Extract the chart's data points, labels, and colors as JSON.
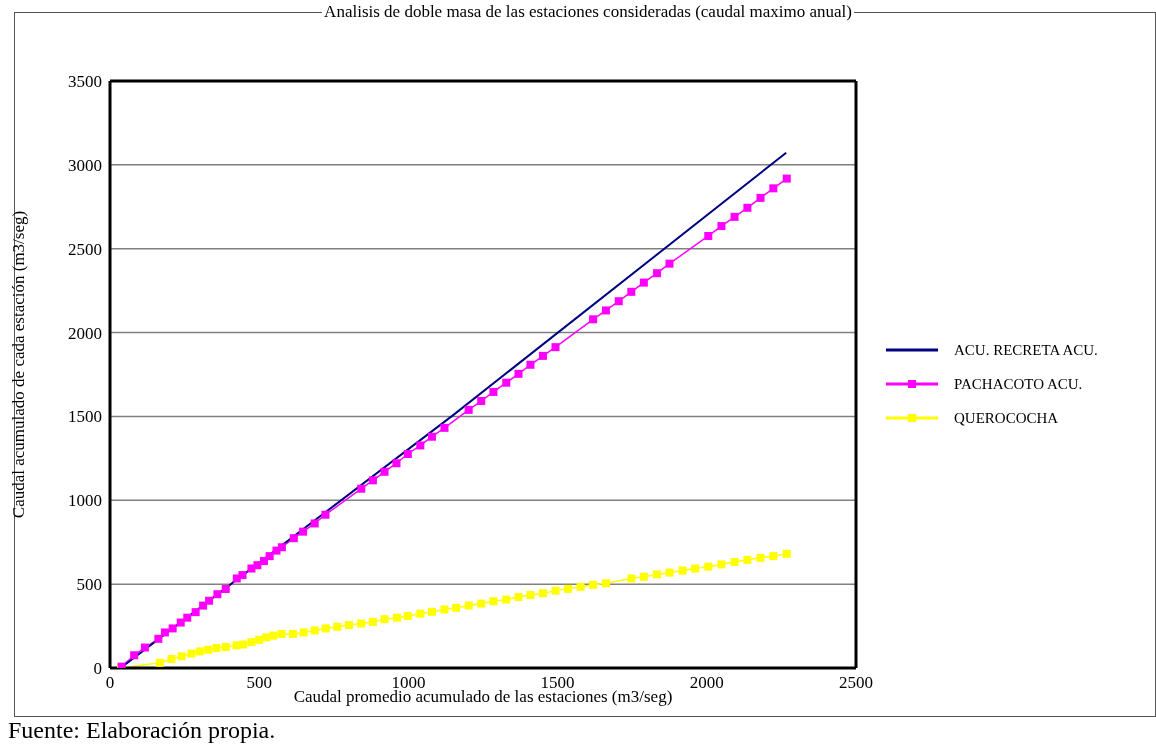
{
  "chart_data": {
    "type": "line",
    "title": "Analisis de doble masa de las estaciones consideradas (caudal maximo anual)",
    "xlabel": "Caudal promedio acumulado de las estaciones (m3/seg)",
    "ylabel": "Caudal acumulado de cada estación (m3/seg)",
    "annotations": [
      "Fuente: Elaboración propia."
    ],
    "xlim": [
      0,
      2500
    ],
    "xticks": [
      0,
      500,
      1000,
      1500,
      2000,
      2500
    ],
    "ylim": [
      0,
      3500
    ],
    "yticks": [
      0,
      500,
      1000,
      1500,
      2000,
      2500,
      3000,
      3500
    ],
    "grid": "y",
    "legend": "right",
    "series": [
      {
        "name": "ACU. RECRETA ACU.",
        "color": "#000080",
        "marker": "none",
        "x": [
          40,
          1150,
          2266
        ],
        "values": [
          6,
          1508,
          3072
        ]
      },
      {
        "name": "PACHACOTO ACU.",
        "color": "#ff00ff",
        "marker": "square",
        "x": [
          39,
          81,
          117,
          162,
          184,
          210,
          237,
          259,
          287,
          312,
          332,
          360,
          388,
          425,
          444,
          474,
          494,
          516,
          535,
          558,
          576,
          616,
          647,
          686,
          722,
          842,
          881,
          920,
          960,
          998,
          1040,
          1079,
          1121,
          1202,
          1244,
          1285,
          1328,
          1369,
          1409,
          1451,
          1493,
          1619,
          1662,
          1705,
          1747,
          1789,
          1833,
          1875,
          2005,
          2049,
          2093,
          2136,
          2180,
          2223,
          2268
        ],
        "values": [
          8,
          76,
          122,
          174,
          212,
          236,
          271,
          300,
          333,
          372,
          401,
          440,
          471,
          534,
          554,
          593,
          613,
          638,
          667,
          700,
          720,
          774,
          813,
          862,
          914,
          1069,
          1119,
          1170,
          1221,
          1276,
          1327,
          1379,
          1432,
          1539,
          1592,
          1646,
          1701,
          1754,
          1808,
          1861,
          1913,
          2079,
          2132,
          2187,
          2243,
          2298,
          2354,
          2411,
          2576,
          2635,
          2690,
          2744,
          2803,
          2860,
          2918
        ]
      },
      {
        "name": "QUEROCOCHA",
        "color": "#ffff00",
        "marker": "square",
        "x": [
          37,
          167,
          206,
          240,
          273,
          301,
          329,
          357,
          388,
          424,
          446,
          474,
          500,
          524,
          547,
          575,
          613,
          649,
          686,
          723,
          762,
          801,
          842,
          881,
          920,
          962,
          998,
          1040,
          1079,
          1121,
          1160,
          1202,
          1244,
          1285,
          1328,
          1369,
          1409,
          1451,
          1493,
          1535,
          1577,
          1619,
          1662,
          1747,
          1789,
          1833,
          1875,
          1919,
          1961,
          2005,
          2049,
          2093,
          2136,
          2180,
          2223,
          2268
        ],
        "values": [
          0,
          31,
          54,
          70,
          86,
          99,
          109,
          119,
          125,
          135,
          140,
          154,
          168,
          183,
          193,
          203,
          203,
          212,
          224,
          236,
          246,
          256,
          265,
          275,
          291,
          300,
          310,
          324,
          335,
          349,
          359,
          373,
          384,
          398,
          408,
          423,
          435,
          446,
          461,
          472,
          484,
          496,
          505,
          534,
          544,
          558,
          569,
          581,
          593,
          604,
          618,
          632,
          645,
          657,
          667,
          681
        ]
      }
    ]
  }
}
